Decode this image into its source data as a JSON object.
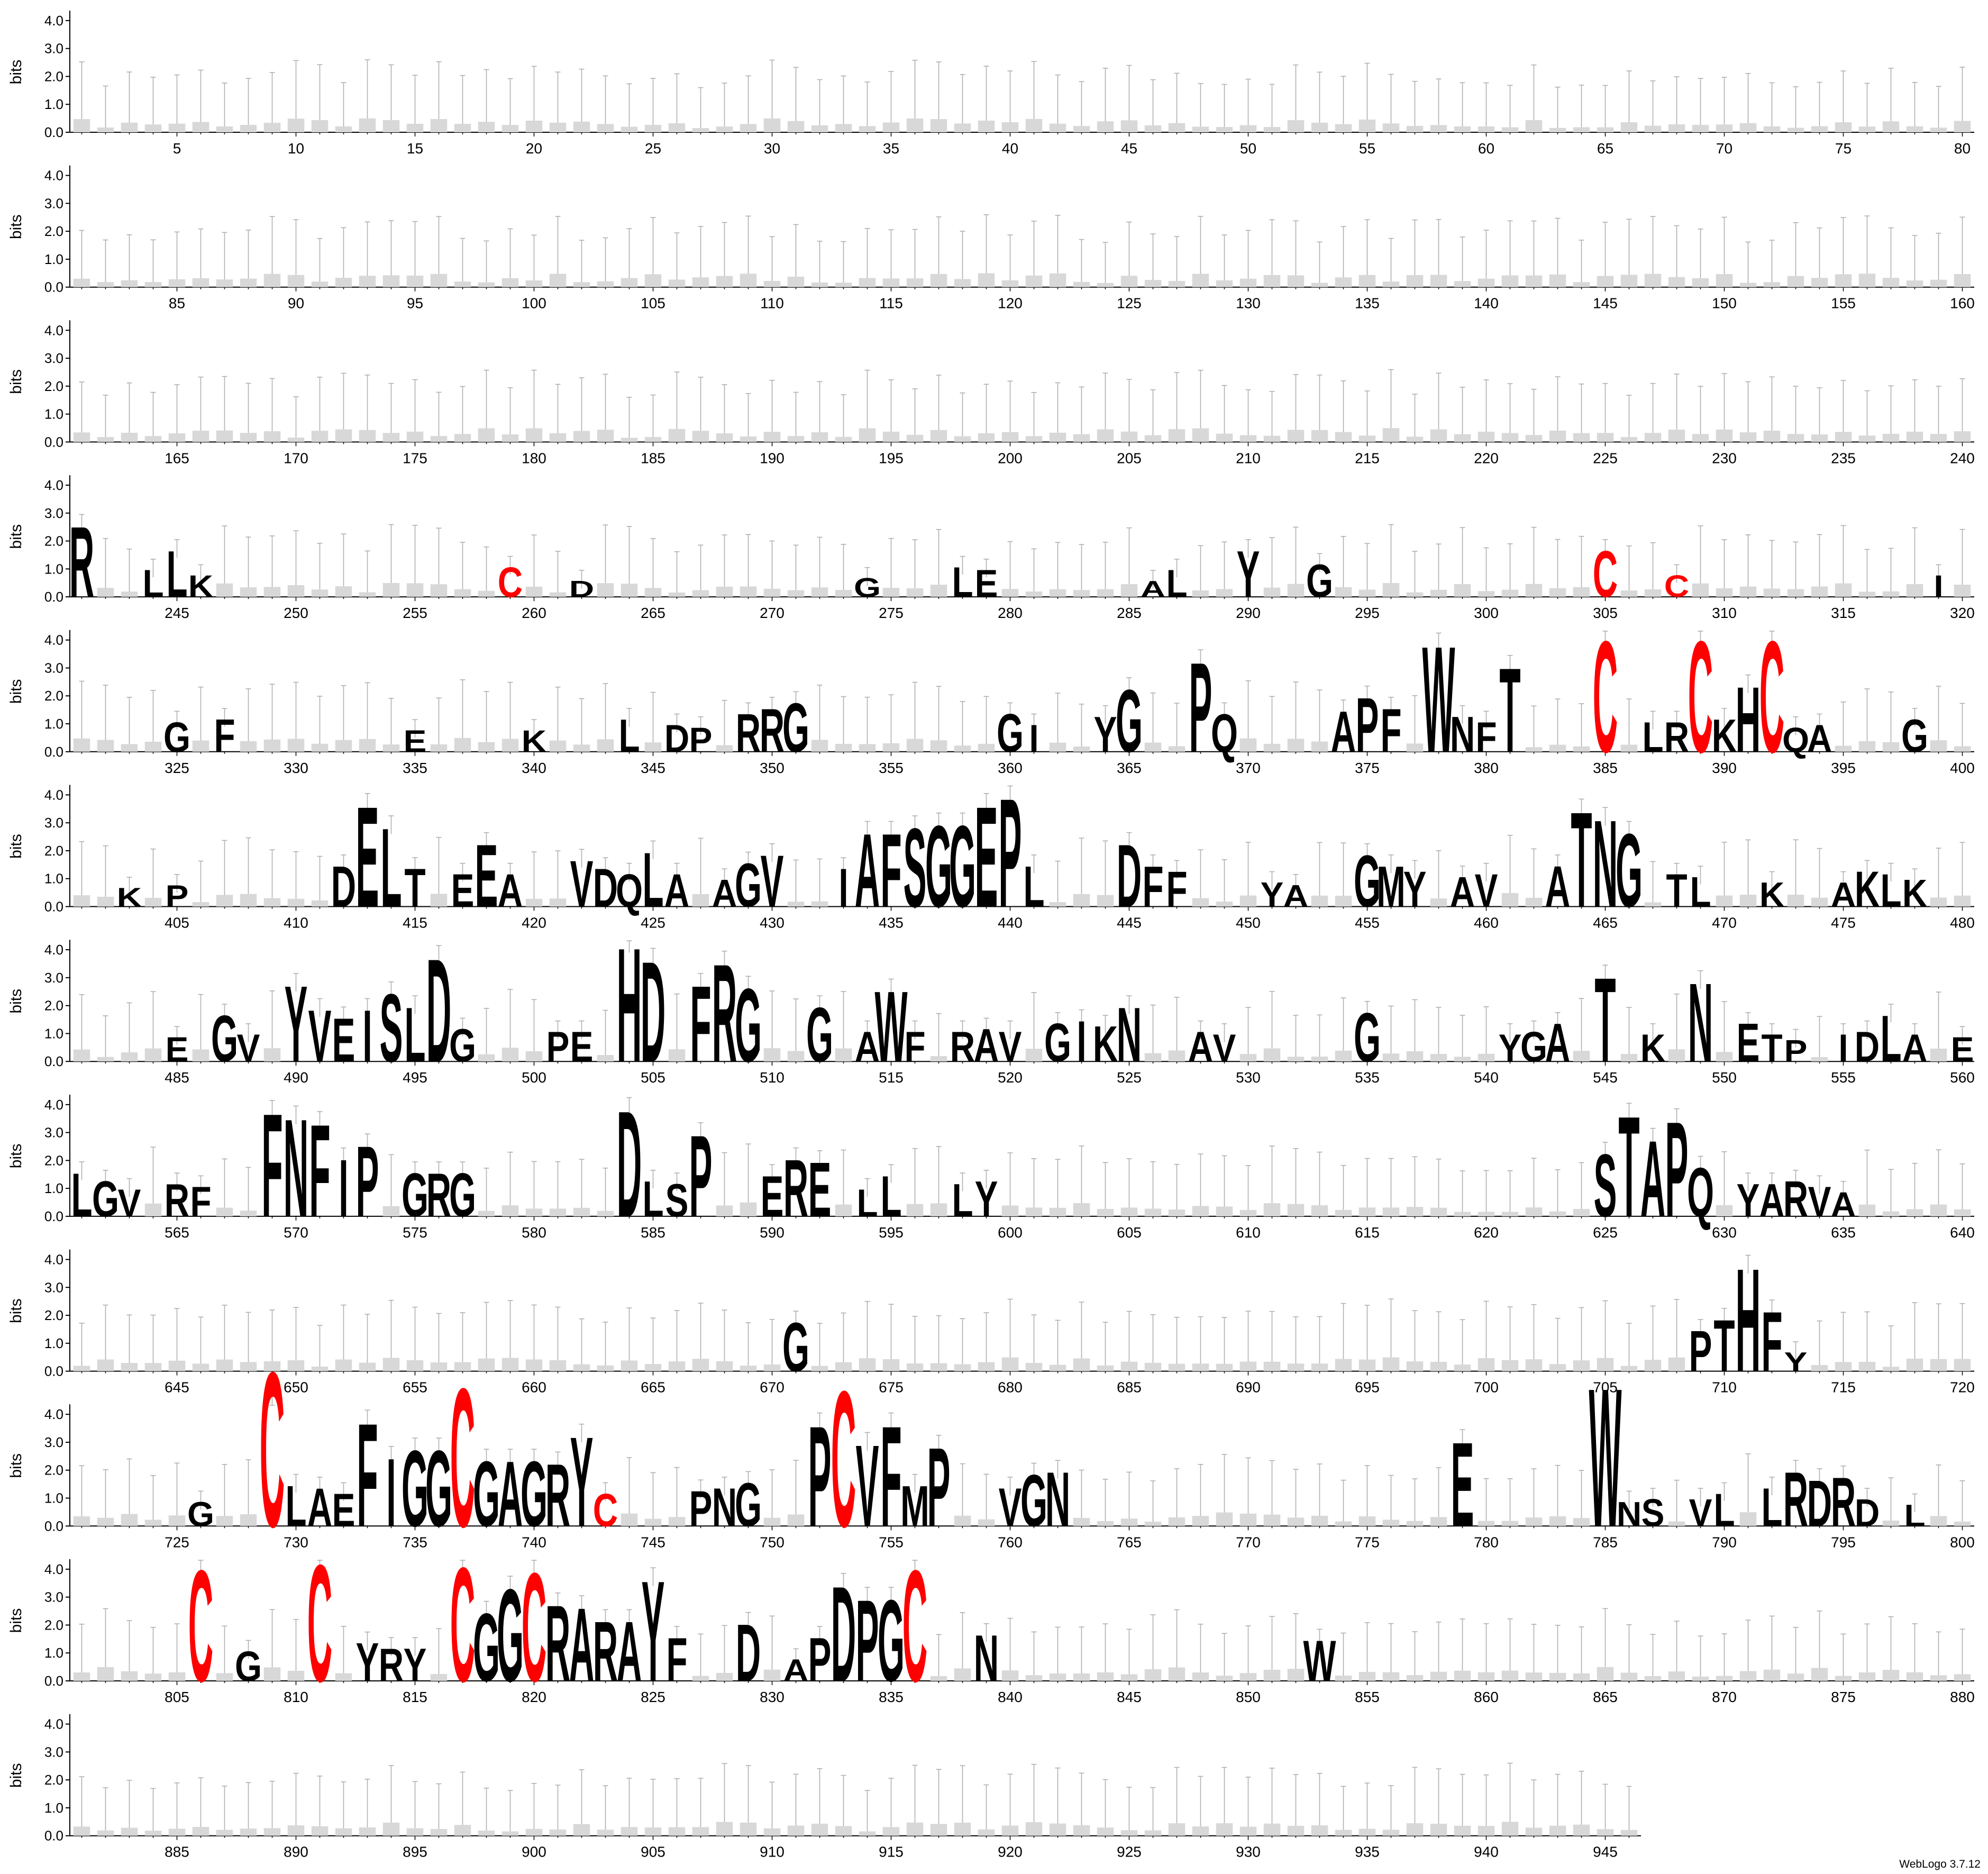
{
  "chart_data": {
    "type": "sequence-logo",
    "ylabel": "bits",
    "yticks": [
      "0.0",
      "1.0",
      "2.0",
      "3.0",
      "4.0"
    ],
    "ylim": [
      0,
      4.32
    ],
    "positions_per_line": 80,
    "total_positions": 946,
    "x_tick_step": 5,
    "highlight_color": "#ff0000",
    "base_color": "#000000",
    "lines": [
      {
        "start": 1,
        "end": 80
      },
      {
        "start": 81,
        "end": 160
      },
      {
        "start": 161,
        "end": 240
      },
      {
        "start": 241,
        "end": 320
      },
      {
        "start": 321,
        "end": 400
      },
      {
        "start": 401,
        "end": 480
      },
      {
        "start": 481,
        "end": 560
      },
      {
        "start": 561,
        "end": 640
      },
      {
        "start": 641,
        "end": 720
      },
      {
        "start": 721,
        "end": 800
      },
      {
        "start": 801,
        "end": 880
      },
      {
        "start": 881,
        "end": 946
      }
    ],
    "columns": [
      [
        241,
        "R",
        2.6
      ],
      [
        244,
        "L",
        1.0
      ],
      [
        245,
        "L",
        1.7
      ],
      [
        246,
        "K",
        0.8
      ],
      [
        259,
        "C",
        1.1
      ],
      [
        262,
        "D",
        0.6
      ],
      [
        274,
        "G",
        0.7
      ],
      [
        278,
        "L",
        1.1
      ],
      [
        279,
        "E",
        1.0
      ],
      [
        286,
        "A",
        0.6
      ],
      [
        287,
        "L",
        1.0
      ],
      [
        290,
        "Y",
        1.7
      ],
      [
        293,
        "G",
        1.2
      ],
      [
        305,
        "C",
        1.7
      ],
      [
        308,
        "C",
        0.8
      ],
      [
        319,
        "I",
        0.8
      ],
      [
        327,
        "F",
        1.2
      ],
      [
        378,
        "W",
        3.9
      ],
      [
        385,
        "C",
        4.1
      ],
      [
        389,
        "C",
        4.1
      ],
      [
        392,
        "C",
        4.1
      ],
      [
        325,
        "G",
        1.1
      ],
      [
        335,
        "E",
        0.8
      ],
      [
        340,
        "K",
        0.8
      ],
      [
        344,
        "L",
        1.2
      ],
      [
        346,
        "D",
        1.0
      ],
      [
        347,
        "P",
        0.9
      ],
      [
        349,
        "R",
        1.4
      ],
      [
        350,
        "R",
        1.6
      ],
      [
        351,
        "G",
        1.8
      ],
      [
        360,
        "G",
        1.4
      ],
      [
        361,
        "I",
        1.0
      ],
      [
        364,
        "Y",
        1.3
      ],
      [
        365,
        "G",
        2.3
      ],
      [
        368,
        "P",
        3.3
      ],
      [
        369,
        "Q",
        1.4
      ],
      [
        374,
        "A",
        1.5
      ],
      [
        375,
        "P",
        2.0
      ],
      [
        376,
        "F",
        1.6
      ],
      [
        379,
        "N",
        1.3
      ],
      [
        380,
        "F",
        1.1
      ],
      [
        381,
        "T",
        3.1
      ],
      [
        387,
        "L",
        1.1
      ],
      [
        388,
        "R",
        1.1
      ],
      [
        390,
        "K",
        1.2
      ],
      [
        391,
        "H",
        2.4
      ],
      [
        393,
        "Q",
        0.9
      ],
      [
        394,
        "A",
        1.0
      ],
      [
        398,
        "G",
        1.2
      ],
      [
        403,
        "K",
        0.7
      ],
      [
        405,
        "P",
        0.8
      ],
      [
        412,
        "D",
        1.5
      ],
      [
        413,
        "E",
        3.7
      ],
      [
        414,
        "L",
        2.9
      ],
      [
        415,
        "T",
        1.4
      ],
      [
        417,
        "E",
        1.2
      ],
      [
        418,
        "E",
        2.3
      ],
      [
        419,
        "A",
        1.2
      ],
      [
        422,
        "V",
        1.7
      ],
      [
        423,
        "D",
        1.4
      ],
      [
        424,
        "Q",
        1.2
      ],
      [
        425,
        "L",
        2.0
      ],
      [
        426,
        "A",
        1.2
      ],
      [
        428,
        "A",
        1.0
      ],
      [
        429,
        "G",
        1.6
      ],
      [
        430,
        "V",
        1.9
      ],
      [
        433,
        "I",
        1.4
      ],
      [
        434,
        "A",
        2.7
      ],
      [
        435,
        "F",
        2.7
      ],
      [
        436,
        "S",
        2.9
      ],
      [
        437,
        "G",
        3.0
      ],
      [
        438,
        "G",
        3.0
      ],
      [
        439,
        "E",
        3.7
      ],
      [
        440,
        "P",
        4.0
      ],
      [
        441,
        "L",
        1.5
      ],
      [
        445,
        "D",
        2.3
      ],
      [
        446,
        "F",
        1.5
      ],
      [
        447,
        "F",
        1.3
      ],
      [
        451,
        "Y",
        0.9
      ],
      [
        452,
        "A",
        0.8
      ],
      [
        455,
        "G",
        1.9
      ],
      [
        456,
        "M",
        1.5
      ],
      [
        457,
        "Y",
        1.3
      ],
      [
        459,
        "A",
        1.1
      ],
      [
        460,
        "V",
        1.2
      ],
      [
        463,
        "A",
        1.5
      ],
      [
        464,
        "T",
        3.5
      ],
      [
        465,
        "N",
        3.2
      ],
      [
        466,
        "G",
        2.7
      ],
      [
        468,
        "T",
        1.2
      ],
      [
        469,
        "L",
        1.1
      ],
      [
        472,
        "K",
        0.9
      ],
      [
        475,
        "A",
        0.9
      ],
      [
        476,
        "K",
        1.3
      ],
      [
        477,
        "L",
        1.2
      ],
      [
        478,
        "K",
        1.0
      ],
      [
        485,
        "E",
        0.9
      ],
      [
        487,
        "G",
        1.7
      ],
      [
        488,
        "V",
        1.0
      ],
      [
        490,
        "Y",
        2.8
      ],
      [
        491,
        "V",
        1.9
      ],
      [
        492,
        "E",
        1.6
      ],
      [
        493,
        "I",
        1.9
      ],
      [
        494,
        "S",
        2.5
      ],
      [
        495,
        "L",
        2.0
      ],
      [
        496,
        "D",
        3.8
      ],
      [
        497,
        "G",
        1.2
      ],
      [
        501,
        "P",
        1.1
      ],
      [
        502,
        "E",
        1.1
      ],
      [
        504,
        "H",
        4.2
      ],
      [
        505,
        "D",
        3.7
      ],
      [
        507,
        "F",
        2.8
      ],
      [
        508,
        "R",
        3.6
      ],
      [
        509,
        "G",
        2.7
      ],
      [
        512,
        "G",
        2.0
      ],
      [
        514,
        "A",
        1.1
      ],
      [
        515,
        "W",
        2.6
      ],
      [
        516,
        "F",
        1.1
      ],
      [
        518,
        "R",
        1.1
      ],
      [
        519,
        "A",
        1.2
      ],
      [
        520,
        "V",
        1.1
      ],
      [
        522,
        "G",
        1.4
      ],
      [
        523,
        "I",
        1.5
      ],
      [
        524,
        "K",
        1.3
      ],
      [
        525,
        "N",
        2.0
      ],
      [
        528,
        "A",
        1.1
      ],
      [
        529,
        "V",
        1.0
      ],
      [
        535,
        "G",
        1.8
      ],
      [
        541,
        "Y",
        1.0
      ],
      [
        542,
        "G",
        1.1
      ],
      [
        543,
        "A",
        1.4
      ],
      [
        545,
        "T",
        3.1
      ],
      [
        547,
        "K",
        1.0
      ],
      [
        549,
        "N",
        2.9
      ],
      [
        551,
        "E",
        1.4
      ],
      [
        552,
        "T",
        1.0
      ],
      [
        553,
        "P",
        0.8
      ],
      [
        555,
        "I",
        1.0
      ],
      [
        556,
        "D",
        1.1
      ],
      [
        557,
        "L",
        1.7
      ],
      [
        558,
        "A",
        1.0
      ],
      [
        560,
        "E",
        0.9
      ],
      [
        561,
        "L",
        1.6
      ],
      [
        562,
        "G",
        1.3
      ],
      [
        563,
        "V",
        1.0
      ],
      [
        565,
        "R",
        1.2
      ],
      [
        566,
        "F",
        1.1
      ],
      [
        569,
        "F",
        3.8
      ],
      [
        570,
        "N",
        3.6
      ],
      [
        571,
        "F",
        3.4
      ],
      [
        572,
        "I",
        2.1
      ],
      [
        573,
        "P",
        2.6
      ],
      [
        575,
        "G",
        1.6
      ],
      [
        576,
        "R",
        1.6
      ],
      [
        577,
        "G",
        1.6
      ],
      [
        584,
        "D",
        3.9
      ],
      [
        585,
        "L",
        1.3
      ],
      [
        586,
        "S",
        1.2
      ],
      [
        587,
        "P",
        3.0
      ],
      [
        590,
        "E",
        1.5
      ],
      [
        591,
        "R",
        2.1
      ],
      [
        592,
        "E",
        2.0
      ],
      [
        594,
        "L",
        1.0
      ],
      [
        595,
        "L",
        1.5
      ],
      [
        598,
        "L",
        1.2
      ],
      [
        599,
        "Y",
        1.3
      ],
      [
        625,
        "S",
        2.3
      ],
      [
        626,
        "T",
        3.7
      ],
      [
        627,
        "A",
        2.8
      ],
      [
        628,
        "P",
        3.5
      ],
      [
        629,
        "Q",
        1.8
      ],
      [
        631,
        "Y",
        1.2
      ],
      [
        632,
        "A",
        1.2
      ],
      [
        633,
        "R",
        1.3
      ],
      [
        634,
        "V",
        1.1
      ],
      [
        635,
        "A",
        0.9
      ],
      [
        671,
        "G",
        1.8
      ],
      [
        709,
        "P",
        1.5
      ],
      [
        710,
        "T",
        1.9
      ],
      [
        711,
        "H",
        3.8
      ],
      [
        712,
        "F",
        2.2
      ],
      [
        713,
        "Y",
        0.7
      ],
      [
        726,
        "G",
        0.9
      ],
      [
        729,
        "C",
        5.7
      ],
      [
        730,
        "L",
        1.5
      ],
      [
        731,
        "A",
        1.4
      ],
      [
        732,
        "E",
        1.2
      ],
      [
        733,
        "F",
        3.8
      ],
      [
        734,
        "I",
        2.5
      ],
      [
        735,
        "G",
        2.8
      ],
      [
        736,
        "G",
        2.8
      ],
      [
        737,
        "C",
        5.1
      ],
      [
        738,
        "G",
        2.4
      ],
      [
        739,
        "A",
        2.4
      ],
      [
        740,
        "G",
        2.4
      ],
      [
        741,
        "R",
        2.3
      ],
      [
        742,
        "Y",
        3.3
      ],
      [
        743,
        "C",
        1.2
      ],
      [
        747,
        "P",
        1.3
      ],
      [
        748,
        "N",
        1.4
      ],
      [
        749,
        "G",
        1.6
      ],
      [
        752,
        "P",
        3.7
      ],
      [
        753,
        "C",
        5.0
      ],
      [
        754,
        "V",
        3.0
      ],
      [
        755,
        "F",
        3.7
      ],
      [
        756,
        "M",
        1.5
      ],
      [
        757,
        "P",
        2.9
      ],
      [
        760,
        "V",
        1.4
      ],
      [
        761,
        "G",
        1.9
      ],
      [
        762,
        "N",
        2.0
      ],
      [
        779,
        "E",
        3.1
      ],
      [
        785,
        "W",
        5.1
      ],
      [
        786,
        "N",
        0.9
      ],
      [
        787,
        "S",
        1.0
      ],
      [
        789,
        "V",
        1.0
      ],
      [
        790,
        "L",
        1.2
      ],
      [
        792,
        "L",
        1.4
      ],
      [
        793,
        "R",
        2.0
      ],
      [
        794,
        "D",
        1.7
      ],
      [
        795,
        "R",
        1.8
      ],
      [
        796,
        "D",
        1.0
      ],
      [
        798,
        "L",
        0.8
      ],
      [
        806,
        "C",
        4.1
      ],
      [
        808,
        "G",
        1.1
      ],
      [
        811,
        "C",
        4.3
      ],
      [
        813,
        "Y",
        1.4
      ],
      [
        814,
        "R",
        1.2
      ],
      [
        815,
        "Y",
        1.2
      ],
      [
        817,
        "C",
        4.2
      ],
      [
        818,
        "G",
        2.5
      ],
      [
        819,
        "G",
        3.4
      ],
      [
        820,
        "C",
        4.0
      ],
      [
        821,
        "R",
        2.8
      ],
      [
        822,
        "A",
        2.7
      ],
      [
        823,
        "R",
        2.2
      ],
      [
        824,
        "A",
        2.2
      ],
      [
        825,
        "Y",
        3.7
      ],
      [
        826,
        "F",
        1.6
      ],
      [
        829,
        "D",
        2.1
      ],
      [
        831,
        "A",
        0.8
      ],
      [
        832,
        "P",
        1.6
      ],
      [
        833,
        "D",
        3.5
      ],
      [
        834,
        "P",
        3.0
      ],
      [
        835,
        "G",
        3.0
      ],
      [
        836,
        "C",
        4.1
      ],
      [
        839,
        "N",
        1.7
      ],
      [
        853,
        "W",
        1.5
      ]
    ]
  },
  "footer": {
    "credit": "WebLogo 3.7.12"
  }
}
